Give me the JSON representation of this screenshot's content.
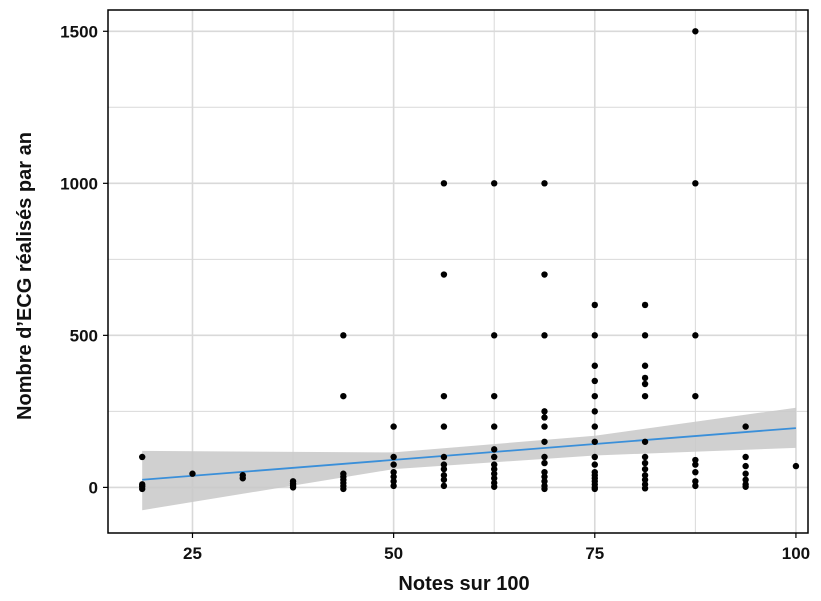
{
  "chart_data": {
    "type": "scatter",
    "title": "",
    "xlabel": "Notes sur 100",
    "ylabel": "Nombre d’ECG réalisés par an",
    "xlim": [
      14.5,
      101.5
    ],
    "ylim": [
      -150,
      1570
    ],
    "xticks": [
      25,
      50,
      75,
      100
    ],
    "yticks": [
      0,
      500,
      1000,
      1500
    ],
    "grid": true,
    "legend": "none",
    "colors": {
      "points": "#000000",
      "trend_line": "#3a8fd9",
      "confidence_band": "#c8c8c8",
      "grid": "#d9d9d9",
      "frame": "#000000"
    },
    "trend": {
      "x": [
        18.75,
        100
      ],
      "y": [
        25,
        195
      ],
      "ci_x": [
        18.75,
        50,
        75,
        100
      ],
      "ci_lower": [
        -75,
        60,
        105,
        130
      ],
      "ci_upper": [
        120,
        115,
        170,
        262
      ]
    },
    "points": [
      {
        "x": 18.75,
        "y": 100
      },
      {
        "x": 18.75,
        "y": 10
      },
      {
        "x": 18.75,
        "y": 3
      },
      {
        "x": 18.75,
        "y": -5
      },
      {
        "x": 25,
        "y": 45
      },
      {
        "x": 31.25,
        "y": 40
      },
      {
        "x": 31.25,
        "y": 30
      },
      {
        "x": 37.5,
        "y": 20
      },
      {
        "x": 37.5,
        "y": 12
      },
      {
        "x": 37.5,
        "y": 5
      },
      {
        "x": 37.5,
        "y": 0
      },
      {
        "x": 43.75,
        "y": 500
      },
      {
        "x": 43.75,
        "y": 300
      },
      {
        "x": 43.75,
        "y": 45
      },
      {
        "x": 43.75,
        "y": 35
      },
      {
        "x": 43.75,
        "y": 25
      },
      {
        "x": 43.75,
        "y": 15
      },
      {
        "x": 43.75,
        "y": 5
      },
      {
        "x": 43.75,
        "y": -5
      },
      {
        "x": 50,
        "y": 200
      },
      {
        "x": 50,
        "y": 100
      },
      {
        "x": 50,
        "y": 75
      },
      {
        "x": 50,
        "y": 50
      },
      {
        "x": 50,
        "y": 35
      },
      {
        "x": 50,
        "y": 20
      },
      {
        "x": 50,
        "y": 5
      },
      {
        "x": 56.25,
        "y": 1000
      },
      {
        "x": 56.25,
        "y": 700
      },
      {
        "x": 56.25,
        "y": 300
      },
      {
        "x": 56.25,
        "y": 200
      },
      {
        "x": 56.25,
        "y": 100
      },
      {
        "x": 56.25,
        "y": 75
      },
      {
        "x": 56.25,
        "y": 60
      },
      {
        "x": 56.25,
        "y": 40
      },
      {
        "x": 56.25,
        "y": 25
      },
      {
        "x": 56.25,
        "y": 5
      },
      {
        "x": 62.5,
        "y": 1000
      },
      {
        "x": 62.5,
        "y": 500
      },
      {
        "x": 62.5,
        "y": 300
      },
      {
        "x": 62.5,
        "y": 200
      },
      {
        "x": 62.5,
        "y": 125
      },
      {
        "x": 62.5,
        "y": 100
      },
      {
        "x": 62.5,
        "y": 75
      },
      {
        "x": 62.5,
        "y": 60
      },
      {
        "x": 62.5,
        "y": 45
      },
      {
        "x": 62.5,
        "y": 30
      },
      {
        "x": 62.5,
        "y": 15
      },
      {
        "x": 62.5,
        "y": 2
      },
      {
        "x": 68.75,
        "y": 1000
      },
      {
        "x": 68.75,
        "y": 700
      },
      {
        "x": 68.75,
        "y": 500
      },
      {
        "x": 68.75,
        "y": 250
      },
      {
        "x": 68.75,
        "y": 230
      },
      {
        "x": 68.75,
        "y": 200
      },
      {
        "x": 68.75,
        "y": 150
      },
      {
        "x": 68.75,
        "y": 100
      },
      {
        "x": 68.75,
        "y": 80
      },
      {
        "x": 68.75,
        "y": 50
      },
      {
        "x": 68.75,
        "y": 35
      },
      {
        "x": 68.75,
        "y": 20
      },
      {
        "x": 68.75,
        "y": 5
      },
      {
        "x": 68.75,
        "y": -5
      },
      {
        "x": 75,
        "y": 600
      },
      {
        "x": 75,
        "y": 500
      },
      {
        "x": 75,
        "y": 400
      },
      {
        "x": 75,
        "y": 350
      },
      {
        "x": 75,
        "y": 300
      },
      {
        "x": 75,
        "y": 250
      },
      {
        "x": 75,
        "y": 200
      },
      {
        "x": 75,
        "y": 150
      },
      {
        "x": 75,
        "y": 100
      },
      {
        "x": 75,
        "y": 75
      },
      {
        "x": 75,
        "y": 50
      },
      {
        "x": 75,
        "y": 40
      },
      {
        "x": 75,
        "y": 30
      },
      {
        "x": 75,
        "y": 20
      },
      {
        "x": 75,
        "y": 10
      },
      {
        "x": 75,
        "y": 0
      },
      {
        "x": 75,
        "y": -5
      },
      {
        "x": 81.25,
        "y": 600
      },
      {
        "x": 81.25,
        "y": 500
      },
      {
        "x": 81.25,
        "y": 400
      },
      {
        "x": 81.25,
        "y": 360
      },
      {
        "x": 81.25,
        "y": 340
      },
      {
        "x": 81.25,
        "y": 300
      },
      {
        "x": 81.25,
        "y": 150
      },
      {
        "x": 81.25,
        "y": 100
      },
      {
        "x": 81.25,
        "y": 80
      },
      {
        "x": 81.25,
        "y": 60
      },
      {
        "x": 81.25,
        "y": 40
      },
      {
        "x": 81.25,
        "y": 25
      },
      {
        "x": 81.25,
        "y": 10
      },
      {
        "x": 81.25,
        "y": -3
      },
      {
        "x": 87.5,
        "y": 1500
      },
      {
        "x": 87.5,
        "y": 1000
      },
      {
        "x": 87.5,
        "y": 500
      },
      {
        "x": 87.5,
        "y": 300
      },
      {
        "x": 87.5,
        "y": 90
      },
      {
        "x": 87.5,
        "y": 75
      },
      {
        "x": 87.5,
        "y": 50
      },
      {
        "x": 87.5,
        "y": 20
      },
      {
        "x": 87.5,
        "y": 5
      },
      {
        "x": 93.75,
        "y": 200
      },
      {
        "x": 93.75,
        "y": 100
      },
      {
        "x": 93.75,
        "y": 70
      },
      {
        "x": 93.75,
        "y": 45
      },
      {
        "x": 93.75,
        "y": 25
      },
      {
        "x": 93.75,
        "y": 10
      },
      {
        "x": 93.75,
        "y": 2
      },
      {
        "x": 100,
        "y": 70
      }
    ]
  }
}
